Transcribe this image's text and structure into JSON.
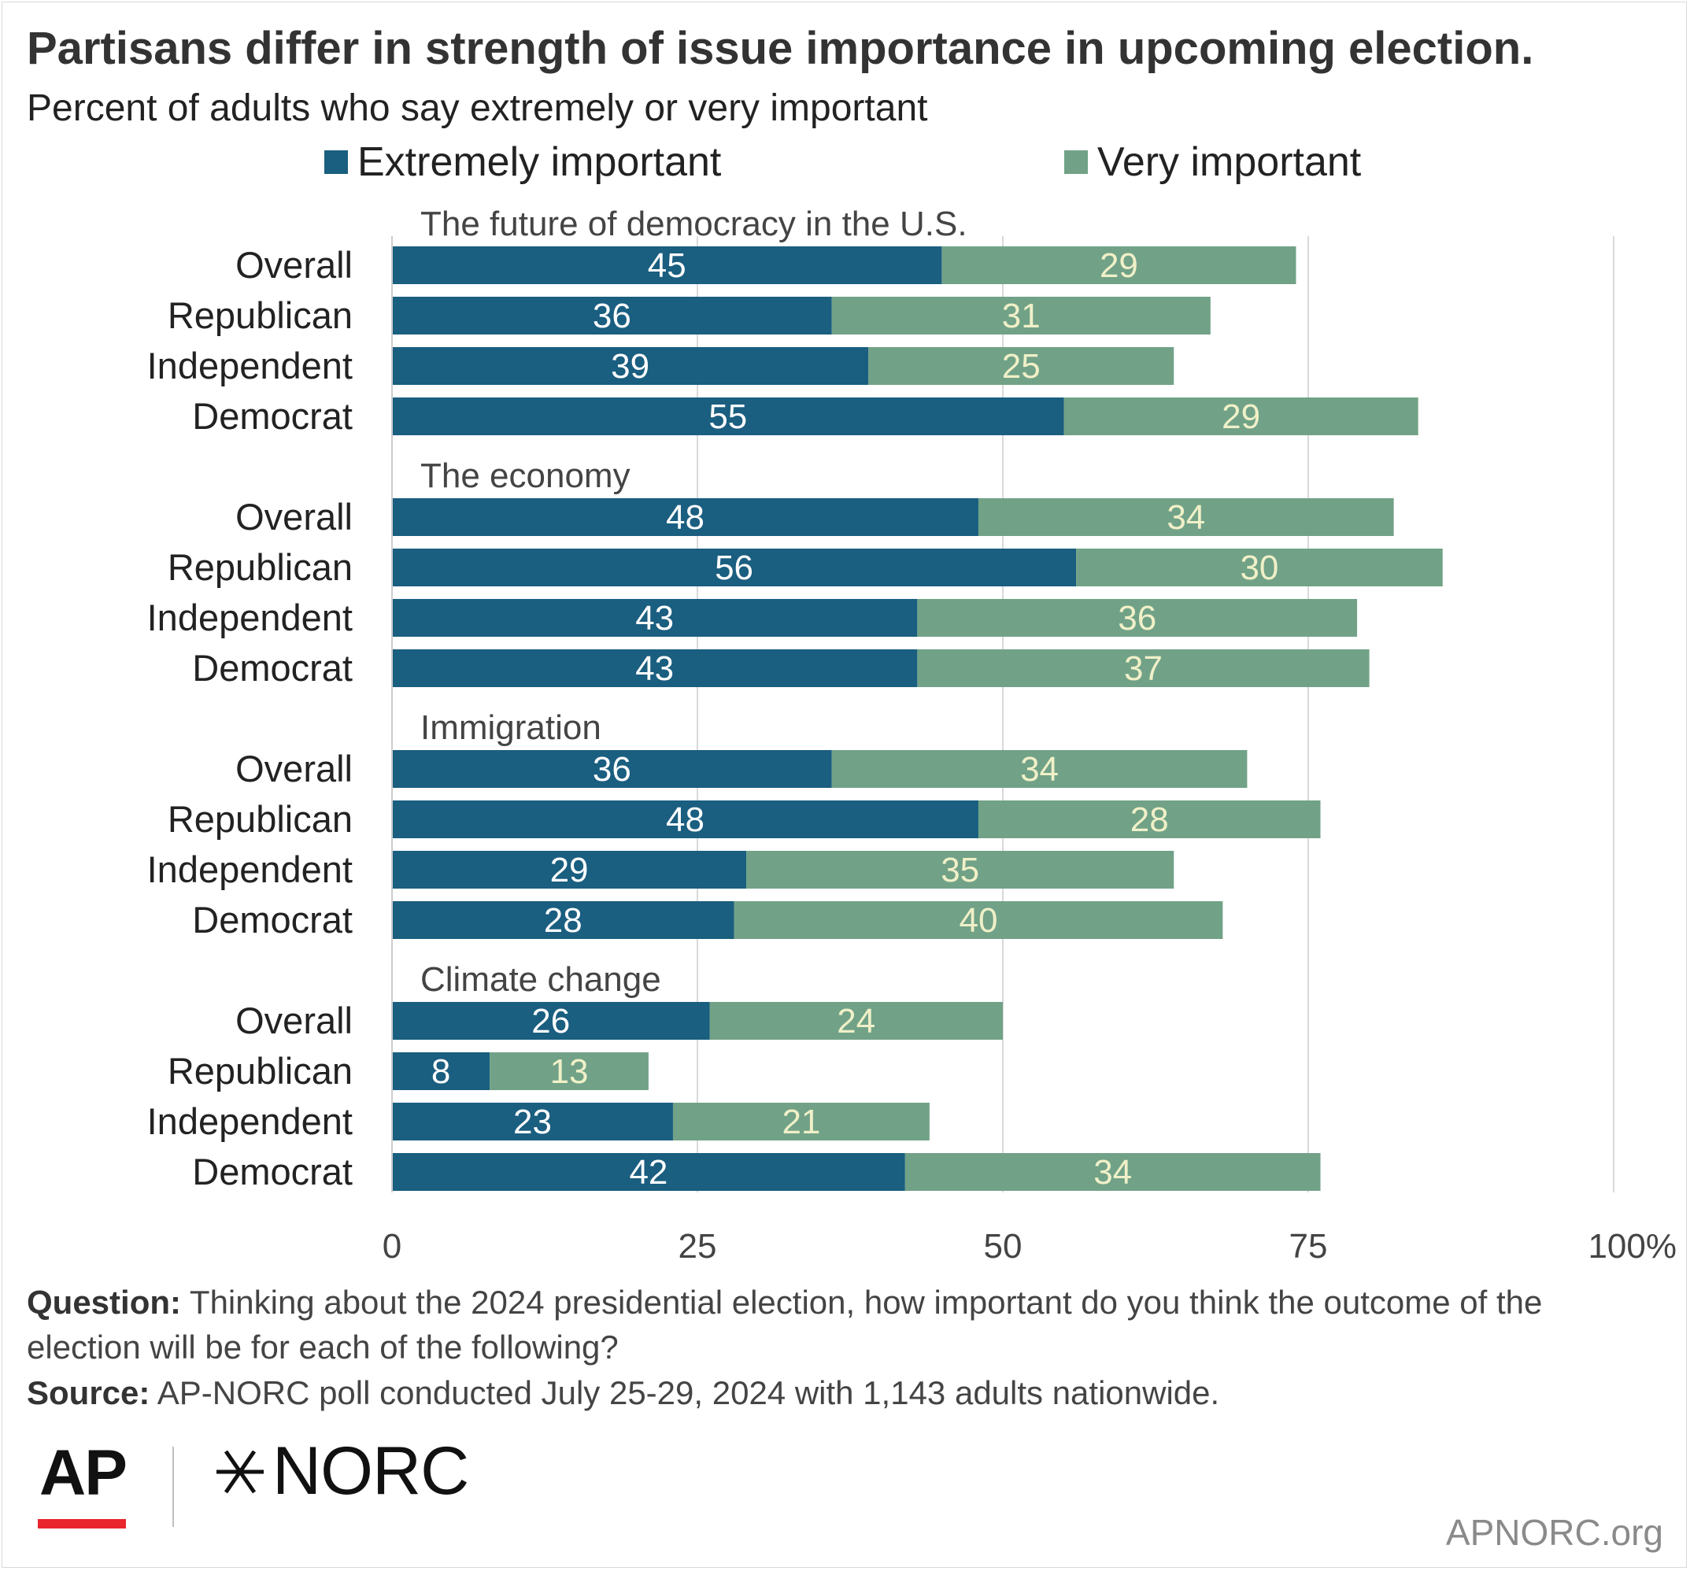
{
  "title": "Partisans differ in strength of issue importance in upcoming election.",
  "subtitle": "Percent of adults who say extremely or very important",
  "colors": {
    "extremely": "#1a5e80",
    "very": "#71a287",
    "gridline": "#d9d9d9",
    "label_on_dark": "#ffffff",
    "label_on_light": "#f0f0c8"
  },
  "chart_data": {
    "type": "bar",
    "orientation": "horizontal",
    "stacked": true,
    "xlim": [
      0,
      100
    ],
    "x_ticks": [
      "0",
      "25",
      "50",
      "75",
      "100%"
    ],
    "x_tick_values": [
      0,
      25,
      50,
      75,
      100
    ],
    "grid": true,
    "legend_position": "top",
    "series": [
      {
        "name": "Extremely important",
        "color": "#1a5e80"
      },
      {
        "name": "Very important",
        "color": "#71a287"
      }
    ],
    "groups": [
      {
        "title": "The future of democracy in the U.S.",
        "rows": [
          {
            "label": "Overall",
            "values": [
              45,
              29
            ]
          },
          {
            "label": "Republican",
            "values": [
              36,
              31
            ]
          },
          {
            "label": "Independent",
            "values": [
              39,
              25
            ]
          },
          {
            "label": "Democrat",
            "values": [
              55,
              29
            ]
          }
        ]
      },
      {
        "title": "The economy",
        "rows": [
          {
            "label": "Overall",
            "values": [
              48,
              34
            ]
          },
          {
            "label": "Republican",
            "values": [
              56,
              30
            ]
          },
          {
            "label": "Independent",
            "values": [
              43,
              36
            ]
          },
          {
            "label": "Democrat",
            "values": [
              43,
              37
            ]
          }
        ]
      },
      {
        "title": "Immigration",
        "rows": [
          {
            "label": "Overall",
            "values": [
              36,
              34
            ]
          },
          {
            "label": "Republican",
            "values": [
              48,
              28
            ]
          },
          {
            "label": "Independent",
            "values": [
              29,
              35
            ]
          },
          {
            "label": "Democrat",
            "values": [
              28,
              40
            ]
          }
        ]
      },
      {
        "title": "Climate change",
        "rows": [
          {
            "label": "Overall",
            "values": [
              26,
              24
            ]
          },
          {
            "label": "Republican",
            "values": [
              8,
              13
            ]
          },
          {
            "label": "Independent",
            "values": [
              23,
              21
            ]
          },
          {
            "label": "Democrat",
            "values": [
              42,
              34
            ]
          }
        ]
      }
    ]
  },
  "footnotes": {
    "question_label": "Question:",
    "question_text": " Thinking about the 2024 presidential election, how important do you think the outcome of the election will be for each of the following?",
    "source_label": "Source:",
    "source_text": " AP-NORC poll conducted July 25-29, 2024 with 1,143 adults nationwide."
  },
  "logos": {
    "ap": "AP",
    "norc": "NORC",
    "norc_mark": "star-mark-icon"
  },
  "site": "APNORC.org"
}
